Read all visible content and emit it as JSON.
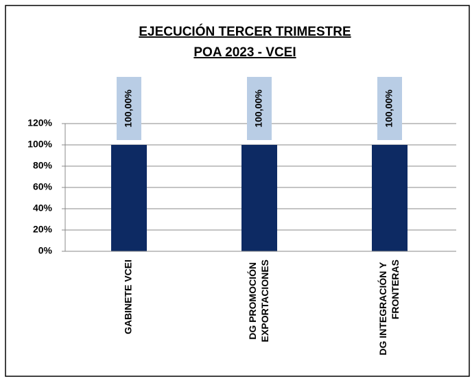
{
  "chart_data": {
    "type": "bar",
    "title": "EJECUCIÓN TERCER TRIMESTRE",
    "subtitle": "POA 2023 - VCEI",
    "categories": [
      "GABINETE VCEI",
      "DG PROMOCIÓN EXPORTACIONES",
      "DG INTEGRACIÓN Y FRONTERAS"
    ],
    "values": [
      100,
      100,
      100
    ],
    "value_labels": [
      "100,00%",
      "100,00%",
      "100,00%"
    ],
    "color": "#0d2a63",
    "label_box_color": "#b9cde5",
    "ylim": [
      0,
      120
    ],
    "yticks": [
      {
        "value": 0,
        "label": "0%"
      },
      {
        "value": 20,
        "label": "20%"
      },
      {
        "value": 40,
        "label": "40%"
      },
      {
        "value": 60,
        "label": "60%"
      },
      {
        "value": 80,
        "label": "80%"
      },
      {
        "value": 100,
        "label": "100%"
      },
      {
        "value": 120,
        "label": "120%"
      }
    ],
    "grid": true
  }
}
